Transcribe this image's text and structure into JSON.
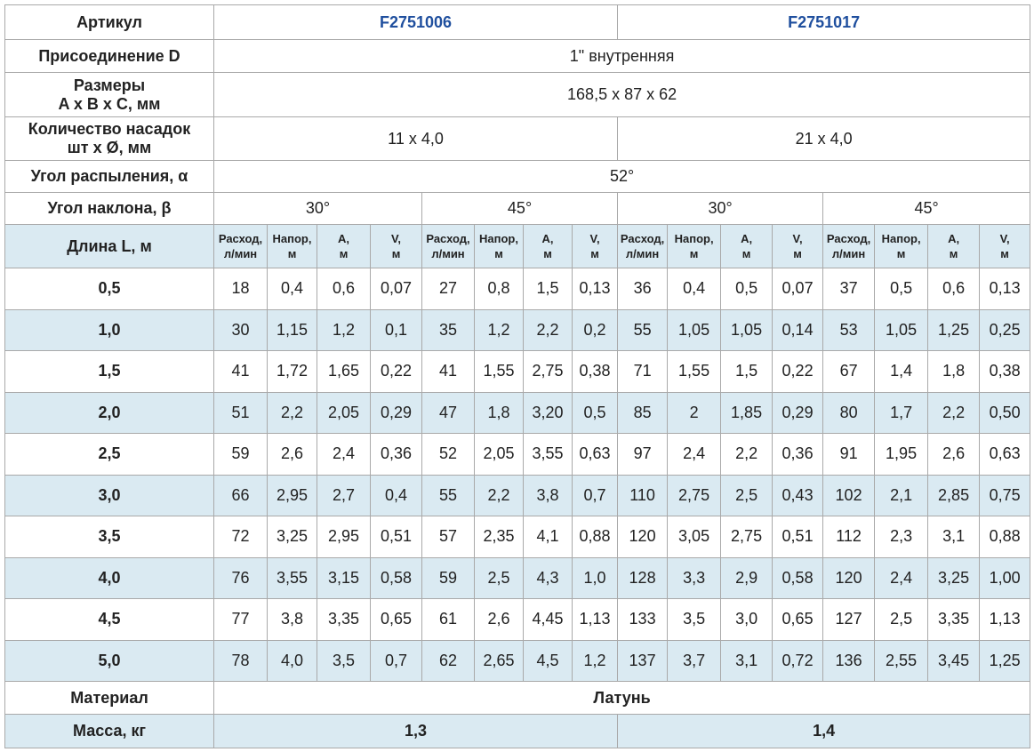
{
  "articles": {
    "label": "Артикул",
    "values": [
      "F2751006",
      "F2751017"
    ]
  },
  "connection": {
    "label": "Присоединение D",
    "value": "1\" внутренняя"
  },
  "dimensions": {
    "label_lines": [
      "Размеры",
      "A x B x C, мм"
    ],
    "value": "168,5 x 87 x 62"
  },
  "nozzles": {
    "label_lines": [
      "Количество насадок",
      "шт x Ø, мм"
    ],
    "values": [
      "11 x 4,0",
      "21 x 4,0"
    ]
  },
  "spray_angle": {
    "label": "Угол распыления, α",
    "value": "52°"
  },
  "tilt_angle": {
    "label": "Угол наклона, β",
    "values": [
      "30°",
      "45°",
      "30°",
      "45°"
    ]
  },
  "length_header": "Длина L, м",
  "column_headers": [
    [
      "Расход,",
      "л/мин"
    ],
    [
      "Напор,",
      "м"
    ],
    [
      "A,",
      "м"
    ],
    [
      "V,",
      "м"
    ]
  ],
  "rows": [
    {
      "length": "0,5",
      "values": [
        "18",
        "0,4",
        "0,6",
        "0,07",
        "27",
        "0,8",
        "1,5",
        "0,13",
        "36",
        "0,4",
        "0,5",
        "0,07",
        "37",
        "0,5",
        "0,6",
        "0,13"
      ]
    },
    {
      "length": "1,0",
      "values": [
        "30",
        "1,15",
        "1,2",
        "0,1",
        "35",
        "1,2",
        "2,2",
        "0,2",
        "55",
        "1,05",
        "1,05",
        "0,14",
        "53",
        "1,05",
        "1,25",
        "0,25"
      ]
    },
    {
      "length": "1,5",
      "values": [
        "41",
        "1,72",
        "1,65",
        "0,22",
        "41",
        "1,55",
        "2,75",
        "0,38",
        "71",
        "1,55",
        "1,5",
        "0,22",
        "67",
        "1,4",
        "1,8",
        "0,38"
      ]
    },
    {
      "length": "2,0",
      "values": [
        "51",
        "2,2",
        "2,05",
        "0,29",
        "47",
        "1,8",
        "3,20",
        "0,5",
        "85",
        "2",
        "1,85",
        "0,29",
        "80",
        "1,7",
        "2,2",
        "0,50"
      ]
    },
    {
      "length": "2,5",
      "values": [
        "59",
        "2,6",
        "2,4",
        "0,36",
        "52",
        "2,05",
        "3,55",
        "0,63",
        "97",
        "2,4",
        "2,2",
        "0,36",
        "91",
        "1,95",
        "2,6",
        "0,63"
      ]
    },
    {
      "length": "3,0",
      "values": [
        "66",
        "2,95",
        "2,7",
        "0,4",
        "55",
        "2,2",
        "3,8",
        "0,7",
        "110",
        "2,75",
        "2,5",
        "0,43",
        "102",
        "2,1",
        "2,85",
        "0,75"
      ]
    },
    {
      "length": "3,5",
      "values": [
        "72",
        "3,25",
        "2,95",
        "0,51",
        "57",
        "2,35",
        "4,1",
        "0,88",
        "120",
        "3,05",
        "2,75",
        "0,51",
        "112",
        "2,3",
        "3,1",
        "0,88"
      ]
    },
    {
      "length": "4,0",
      "values": [
        "76",
        "3,55",
        "3,15",
        "0,58",
        "59",
        "2,5",
        "4,3",
        "1,0",
        "128",
        "3,3",
        "2,9",
        "0,58",
        "120",
        "2,4",
        "3,25",
        "1,00"
      ]
    },
    {
      "length": "4,5",
      "values": [
        "77",
        "3,8",
        "3,35",
        "0,65",
        "61",
        "2,6",
        "4,45",
        "1,13",
        "133",
        "3,5",
        "3,0",
        "0,65",
        "127",
        "2,5",
        "3,35",
        "1,13"
      ]
    },
    {
      "length": "5,0",
      "values": [
        "78",
        "4,0",
        "3,5",
        "0,7",
        "62",
        "2,65",
        "4,5",
        "1,2",
        "137",
        "3,7",
        "3,1",
        "0,72",
        "136",
        "2,55",
        "3,45",
        "1,25"
      ]
    }
  ],
  "material": {
    "label": "Материал",
    "value": "Латунь"
  },
  "mass": {
    "label": "Масса, кг",
    "values": [
      "1,3",
      "1,4"
    ]
  }
}
